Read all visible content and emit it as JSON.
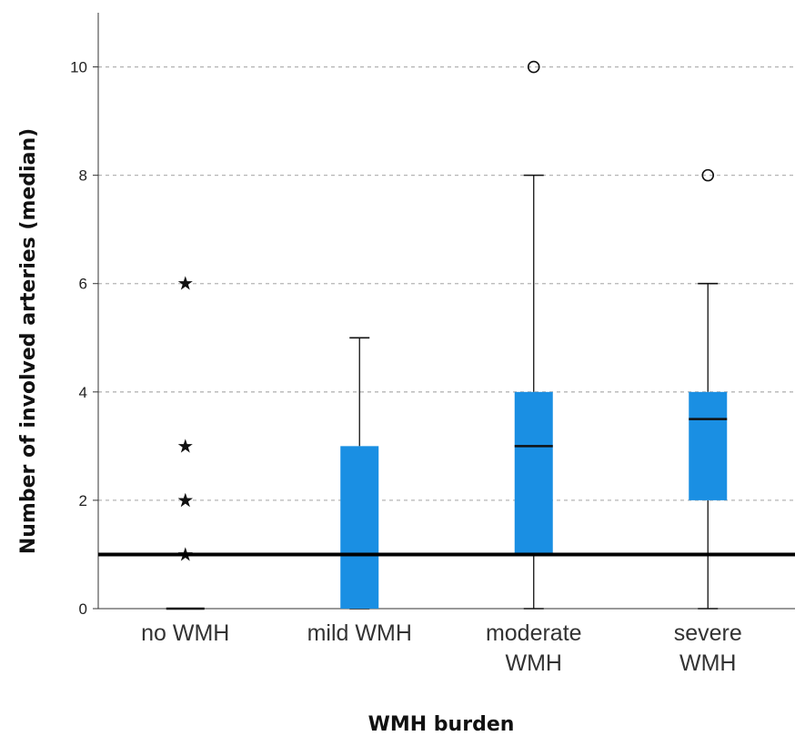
{
  "chart_data": {
    "type": "box",
    "xlabel": "WMH burden",
    "ylabel": "Number of involved arteries (median)",
    "ylim": [
      0,
      11
    ],
    "yticks": [
      "0",
      "2",
      "4",
      "6",
      "8",
      "10"
    ],
    "grid": "horizontal dashed",
    "box_color": "#1a8fe3",
    "reference_line": {
      "y": 1
    },
    "categories": [
      {
        "label": [
          "no WMH"
        ],
        "min": 0,
        "q1": 0,
        "median": 0,
        "q3": 0,
        "max": 0,
        "outliers": [],
        "extremes": [
          1,
          2,
          2,
          3,
          6
        ]
      },
      {
        "label": [
          "mild WMH"
        ],
        "min": 0,
        "q1": 0,
        "median": 1,
        "q3": 3,
        "max": 5,
        "outliers": [],
        "extremes": []
      },
      {
        "label": [
          "moderate",
          "WMH"
        ],
        "min": 0,
        "q1": 1,
        "median": 3,
        "q3": 4,
        "max": 8,
        "outliers": [
          10
        ],
        "extremes": []
      },
      {
        "label": [
          "severe",
          "WMH"
        ],
        "min": 0,
        "q1": 2,
        "median": 3.5,
        "q3": 4,
        "max": 6,
        "outliers": [
          8
        ],
        "extremes": []
      }
    ]
  }
}
